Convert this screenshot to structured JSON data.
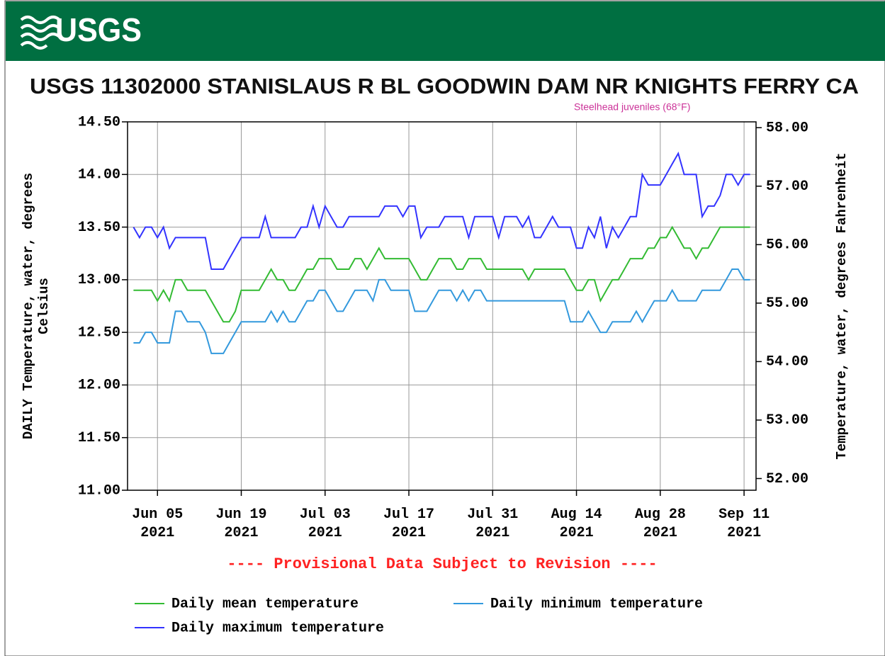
{
  "header": {
    "logo": "USGS"
  },
  "chart_data": {
    "type": "line",
    "title": "USGS 11302000 STANISLAUS R BL GOODWIN DAM NR KNIGHTS FERRY CA",
    "annotation": "Steelhead juveniles (68°F)",
    "note": "---- Provisional Data Subject to Revision ----",
    "ylabel": [
      "DAILY Temperature, water, degrees",
      "Celsius"
    ],
    "y2label": "Temperature, water, degrees Fahrenheit",
    "x": [
      "2021-06-01",
      "2021-06-02",
      "2021-06-03",
      "2021-06-04",
      "2021-06-05",
      "2021-06-06",
      "2021-06-07",
      "2021-06-08",
      "2021-06-09",
      "2021-06-10",
      "2021-06-11",
      "2021-06-12",
      "2021-06-13",
      "2021-06-14",
      "2021-06-15",
      "2021-06-16",
      "2021-06-17",
      "2021-06-18",
      "2021-06-19",
      "2021-06-20",
      "2021-06-21",
      "2021-06-22",
      "2021-06-23",
      "2021-06-24",
      "2021-06-25",
      "2021-06-26",
      "2021-06-27",
      "2021-06-28",
      "2021-06-29",
      "2021-06-30",
      "2021-07-01",
      "2021-07-02",
      "2021-07-03",
      "2021-07-04",
      "2021-07-05",
      "2021-07-06",
      "2021-07-07",
      "2021-07-08",
      "2021-07-09",
      "2021-07-10",
      "2021-07-11",
      "2021-07-12",
      "2021-07-13",
      "2021-07-14",
      "2021-07-15",
      "2021-07-16",
      "2021-07-17",
      "2021-07-18",
      "2021-07-19",
      "2021-07-20",
      "2021-07-21",
      "2021-07-22",
      "2021-07-23",
      "2021-07-24",
      "2021-07-25",
      "2021-07-26",
      "2021-07-27",
      "2021-07-28",
      "2021-07-29",
      "2021-07-30",
      "2021-07-31",
      "2021-08-01",
      "2021-08-02",
      "2021-08-03",
      "2021-08-04",
      "2021-08-05",
      "2021-08-06",
      "2021-08-07",
      "2021-08-08",
      "2021-08-09",
      "2021-08-10",
      "2021-08-11",
      "2021-08-12",
      "2021-08-13",
      "2021-08-14",
      "2021-08-15",
      "2021-08-16",
      "2021-08-17",
      "2021-08-18",
      "2021-08-19",
      "2021-08-20",
      "2021-08-21",
      "2021-08-22",
      "2021-08-23",
      "2021-08-24",
      "2021-08-25",
      "2021-08-26",
      "2021-08-27",
      "2021-08-28",
      "2021-08-29",
      "2021-08-30",
      "2021-08-31",
      "2021-09-01",
      "2021-09-02",
      "2021-09-03",
      "2021-09-04",
      "2021-09-05",
      "2021-09-06",
      "2021-09-07",
      "2021-09-08",
      "2021-09-09",
      "2021-09-10",
      "2021-09-11",
      "2021-09-12"
    ],
    "series": [
      {
        "name": "Daily mean temperature",
        "color": "#33bb33",
        "values": [
          12.9,
          12.9,
          12.9,
          12.9,
          12.8,
          12.9,
          12.8,
          13.0,
          13.0,
          12.9,
          12.9,
          12.9,
          12.9,
          12.8,
          12.7,
          12.6,
          12.6,
          12.7,
          12.9,
          12.9,
          12.9,
          12.9,
          13.0,
          13.1,
          13.0,
          13.0,
          12.9,
          12.9,
          13.0,
          13.1,
          13.1,
          13.2,
          13.2,
          13.2,
          13.1,
          13.1,
          13.1,
          13.2,
          13.2,
          13.1,
          13.2,
          13.3,
          13.2,
          13.2,
          13.2,
          13.2,
          13.2,
          13.1,
          13.0,
          13.0,
          13.1,
          13.2,
          13.2,
          13.2,
          13.1,
          13.1,
          13.2,
          13.2,
          13.2,
          13.1,
          13.1,
          13.1,
          13.1,
          13.1,
          13.1,
          13.1,
          13.0,
          13.1,
          13.1,
          13.1,
          13.1,
          13.1,
          13.1,
          13.0,
          12.9,
          12.9,
          13.0,
          13.0,
          12.8,
          12.9,
          13.0,
          13.0,
          13.1,
          13.2,
          13.2,
          13.2,
          13.3,
          13.3,
          13.4,
          13.4,
          13.5,
          13.4,
          13.3,
          13.3,
          13.2,
          13.3,
          13.3,
          13.4,
          13.5,
          13.5,
          13.5,
          13.5,
          13.5,
          13.5
        ]
      },
      {
        "name": "Daily minimum temperature",
        "color": "#3399dd",
        "values": [
          12.4,
          12.4,
          12.5,
          12.5,
          12.4,
          12.4,
          12.4,
          12.7,
          12.7,
          12.6,
          12.6,
          12.6,
          12.5,
          12.3,
          12.3,
          12.3,
          12.4,
          12.5,
          12.6,
          12.6,
          12.6,
          12.6,
          12.6,
          12.7,
          12.6,
          12.7,
          12.6,
          12.6,
          12.7,
          12.8,
          12.8,
          12.9,
          12.9,
          12.8,
          12.7,
          12.7,
          12.8,
          12.9,
          12.9,
          12.9,
          12.8,
          13.0,
          13.0,
          12.9,
          12.9,
          12.9,
          12.9,
          12.7,
          12.7,
          12.7,
          12.8,
          12.9,
          12.9,
          12.9,
          12.8,
          12.9,
          12.8,
          12.9,
          12.9,
          12.8,
          12.8,
          12.8,
          12.8,
          12.8,
          12.8,
          12.8,
          12.8,
          12.8,
          12.8,
          12.8,
          12.8,
          12.8,
          12.8,
          12.6,
          12.6,
          12.6,
          12.7,
          12.6,
          12.5,
          12.5,
          12.6,
          12.6,
          12.6,
          12.6,
          12.7,
          12.6,
          12.7,
          12.8,
          12.8,
          12.8,
          12.9,
          12.8,
          12.8,
          12.8,
          12.8,
          12.9,
          12.9,
          12.9,
          12.9,
          13.0,
          13.1,
          13.1,
          13.0,
          13.0
        ]
      },
      {
        "name": "Daily maximum temperature",
        "color": "#3333ff",
        "values": [
          13.5,
          13.4,
          13.5,
          13.5,
          13.4,
          13.5,
          13.3,
          13.4,
          13.4,
          13.4,
          13.4,
          13.4,
          13.4,
          13.1,
          13.1,
          13.1,
          13.2,
          13.3,
          13.4,
          13.4,
          13.4,
          13.4,
          13.6,
          13.4,
          13.4,
          13.4,
          13.4,
          13.4,
          13.5,
          13.5,
          13.7,
          13.5,
          13.7,
          13.6,
          13.5,
          13.5,
          13.6,
          13.6,
          13.6,
          13.6,
          13.6,
          13.6,
          13.7,
          13.7,
          13.7,
          13.6,
          13.7,
          13.7,
          13.4,
          13.5,
          13.5,
          13.5,
          13.6,
          13.6,
          13.6,
          13.6,
          13.4,
          13.6,
          13.6,
          13.6,
          13.6,
          13.4,
          13.6,
          13.6,
          13.6,
          13.5,
          13.6,
          13.4,
          13.4,
          13.5,
          13.6,
          13.5,
          13.5,
          13.5,
          13.3,
          13.3,
          13.5,
          13.4,
          13.6,
          13.3,
          13.5,
          13.4,
          13.5,
          13.6,
          13.6,
          14.0,
          13.9,
          13.9,
          13.9,
          14.0,
          14.1,
          14.2,
          14.0,
          14.0,
          14.0,
          13.6,
          13.7,
          13.7,
          13.8,
          14.0,
          14.0,
          13.9,
          14.0,
          14.0
        ]
      }
    ],
    "xlim": [
      "2021-05-31",
      "2021-09-13"
    ],
    "xticks": [
      {
        "value": "2021-06-05",
        "label": "Jun 05\n2021"
      },
      {
        "value": "2021-06-19",
        "label": "Jun 19\n2021"
      },
      {
        "value": "2021-07-03",
        "label": "Jul 03\n2021"
      },
      {
        "value": "2021-07-17",
        "label": "Jul 17\n2021"
      },
      {
        "value": "2021-07-31",
        "label": "Jul 31\n2021"
      },
      {
        "value": "2021-08-14",
        "label": "Aug 14\n2021"
      },
      {
        "value": "2021-08-28",
        "label": "Aug 28\n2021"
      },
      {
        "value": "2021-09-11",
        "label": "Sep 11\n2021"
      }
    ],
    "ylim": [
      11,
      14.5
    ],
    "yticks": [
      {
        "value": 11,
        "label": "11.00"
      },
      {
        "value": 11.5,
        "label": "11.50"
      },
      {
        "value": 12,
        "label": "12.00"
      },
      {
        "value": 12.5,
        "label": "12.50"
      },
      {
        "value": 13,
        "label": "13.00"
      },
      {
        "value": 13.5,
        "label": "13.50"
      },
      {
        "value": 14,
        "label": "14.00"
      },
      {
        "value": 14.5,
        "label": "14.50"
      }
    ],
    "y2lim": [
      51.8,
      58.1
    ],
    "y2ticks": [
      {
        "value": 52,
        "label": "52.00"
      },
      {
        "value": 53,
        "label": "53.00"
      },
      {
        "value": 54,
        "label": "54.00"
      },
      {
        "value": 55,
        "label": "55.00"
      },
      {
        "value": 56,
        "label": "56.00"
      },
      {
        "value": 57,
        "label": "57.00"
      },
      {
        "value": 58,
        "label": "58.00"
      }
    ],
    "grid": true
  }
}
